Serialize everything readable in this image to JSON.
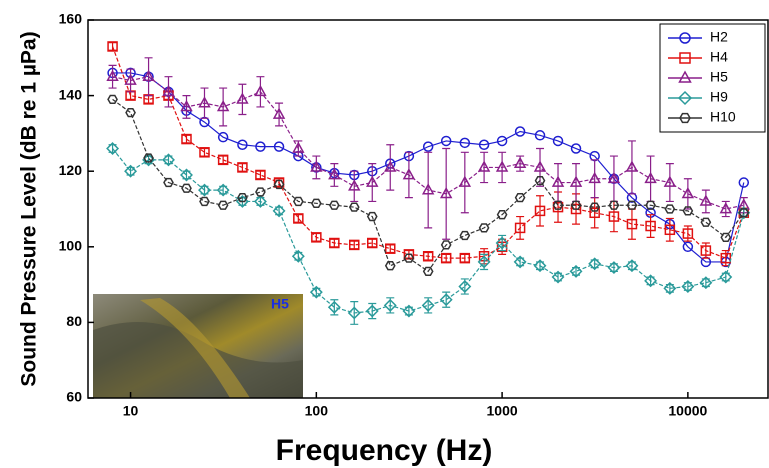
{
  "chart_data": {
    "type": "line",
    "xlabel": "Frequency (Hz)",
    "ylabel": "Sound Pressure Level (dB re 1 µPa)",
    "inset_label": "H5",
    "xscale": "log",
    "xlim": [
      5.9,
      27000
    ],
    "ylim": [
      60,
      160
    ],
    "xticks": [
      10,
      100,
      1000,
      10000
    ],
    "yticks": [
      60,
      80,
      100,
      120,
      140,
      160
    ],
    "legend": "upper right",
    "x": [
      8,
      10,
      12.5,
      16,
      20,
      25,
      31.5,
      40,
      50,
      63,
      80,
      100,
      125,
      160,
      200,
      250,
      315,
      400,
      500,
      630,
      800,
      1000,
      1250,
      1600,
      2000,
      2500,
      3150,
      4000,
      5000,
      6300,
      8000,
      10000,
      12500,
      16000,
      20000
    ],
    "series": [
      {
        "name": "H2",
        "color": "#1f1fd0",
        "marker": "circle",
        "values": [
          146,
          146,
          145,
          141,
          136,
          133,
          129,
          127,
          126.5,
          126.5,
          124,
          121,
          119.5,
          119,
          120,
          122,
          124,
          126.5,
          128,
          127.5,
          127,
          128,
          130.5,
          129.5,
          128,
          126,
          124,
          118,
          113,
          109,
          106,
          100,
          96,
          96,
          117
        ]
      },
      {
        "name": "H4",
        "color": "#e01010",
        "marker": "square",
        "values": [
          153,
          140,
          139,
          140,
          128.5,
          125,
          123,
          121,
          119,
          117,
          107.5,
          102.5,
          101,
          100.5,
          101,
          99.5,
          98,
          97.5,
          97,
          97,
          97.5,
          100,
          105,
          109.5,
          110.5,
          110,
          109,
          108,
          106,
          105.5,
          104.5,
          103.5,
          99,
          97,
          109
        ],
        "errors": [
          1,
          1,
          1,
          1,
          1,
          1,
          1,
          1,
          1,
          1,
          1,
          1,
          1,
          1,
          1,
          1,
          1,
          1,
          1,
          1,
          2,
          2,
          3,
          4,
          4,
          4,
          4,
          4,
          4,
          3,
          3,
          2,
          2,
          2,
          1
        ]
      },
      {
        "name": "H5",
        "color": "#8a1f8a",
        "marker": "triangle",
        "values": [
          145,
          144,
          145,
          141,
          137,
          138,
          137,
          139,
          141,
          135,
          126,
          121,
          119,
          116,
          117,
          121,
          119,
          115,
          114,
          117,
          121,
          121,
          122,
          121,
          117,
          117,
          118,
          118,
          121,
          118,
          117,
          114,
          112,
          110,
          111
        ],
        "errors": [
          3,
          3,
          5,
          4,
          3,
          4,
          5,
          4,
          4,
          3,
          2,
          3,
          3,
          4,
          5,
          6,
          6,
          10,
          12,
          8,
          4,
          4,
          2,
          5,
          5,
          5,
          5,
          6,
          7,
          6,
          5,
          4,
          3,
          2,
          2
        ]
      },
      {
        "name": "H9",
        "color": "#2a9a9a",
        "marker": "diamond",
        "values": [
          126,
          120,
          123,
          123,
          119,
          115,
          115,
          112,
          112,
          109.5,
          97.5,
          88,
          84,
          82.5,
          83,
          84.5,
          83,
          84.5,
          86,
          89.5,
          96,
          101,
          96,
          95,
          92,
          93.5,
          95.5,
          94.5,
          95,
          91,
          89,
          89.5,
          90.5,
          92,
          109
        ],
        "errors": [
          1,
          1,
          1,
          1,
          1,
          1,
          1,
          1,
          1,
          1,
          1,
          1,
          2,
          3,
          2,
          2,
          1,
          2,
          2,
          2,
          2,
          2,
          1,
          1,
          1,
          1,
          1,
          1,
          1,
          1,
          1,
          1,
          1,
          1,
          1
        ]
      },
      {
        "name": "H10",
        "color": "#333333",
        "marker": "hexagon",
        "values": [
          139,
          135.5,
          123.5,
          117,
          115.5,
          112,
          111,
          113,
          114.5,
          116.5,
          112,
          111.5,
          111,
          110.5,
          108,
          95,
          97,
          93.5,
          100.5,
          103,
          105,
          108.5,
          113,
          117.5,
          111,
          111,
          110.5,
          111,
          111,
          111,
          110,
          109.5,
          106.5,
          102.5,
          109
        ]
      }
    ]
  }
}
